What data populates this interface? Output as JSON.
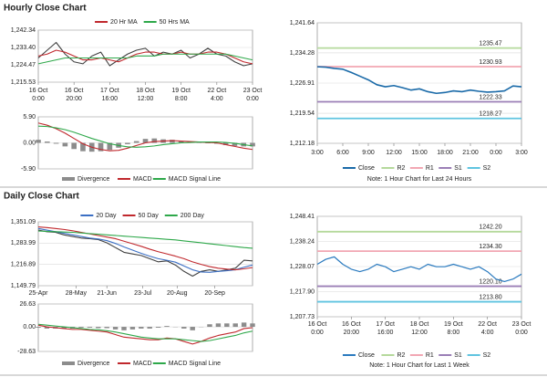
{
  "headers": [
    "Hourly Close Chart",
    "Daily Close Chart"
  ],
  "chart_data": [
    {
      "type": "line",
      "legend": "top",
      "grid": true,
      "xlim": [
        0,
        120
      ],
      "xticks": [
        {
          "value": 0,
          "label": [
            "16 Oct",
            "0:00"
          ]
        },
        {
          "value": 20,
          "label": [
            "16 Oct",
            "20:00"
          ]
        },
        {
          "value": 40,
          "label": [
            "17 Oct",
            "16:00"
          ]
        },
        {
          "value": 60,
          "label": [
            "18 Oct",
            "12:00"
          ]
        },
        {
          "value": 80,
          "label": [
            "19 Oct",
            "8:00"
          ]
        },
        {
          "value": 100,
          "label": [
            "22 Oct",
            "4:00"
          ]
        },
        {
          "value": 120,
          "label": [
            "23 Oct",
            "0:00"
          ]
        }
      ],
      "ylim": [
        1215.53,
        1242.34
      ],
      "yticks": [
        {
          "value": 1215.53,
          "label": "1,215.53"
        },
        {
          "value": 1224.47,
          "label": "1,224.47"
        },
        {
          "value": 1233.4,
          "label": "1,233.40"
        },
        {
          "value": 1242.34,
          "label": "1,242.34"
        }
      ],
      "x": [
        0,
        5,
        10,
        15,
        20,
        25,
        30,
        35,
        40,
        45,
        50,
        55,
        60,
        65,
        70,
        75,
        80,
        85,
        90,
        95,
        100,
        105,
        110,
        115,
        120
      ],
      "series": [
        {
          "color": "#404040",
          "values": [
            1228,
            1232,
            1236,
            1230,
            1226,
            1225,
            1229,
            1231,
            1224,
            1227,
            1230,
            1232,
            1233,
            1229,
            1231,
            1230,
            1232,
            1228,
            1230,
            1233,
            1230,
            1229,
            1226,
            1224,
            1225
          ]
        },
        {
          "name": "20 Hr MA",
          "color": "#c0282d",
          "values": [
            1229,
            1230,
            1232,
            1231,
            1229,
            1227,
            1227,
            1228,
            1227,
            1226,
            1228,
            1230,
            1231,
            1231,
            1230,
            1230,
            1231,
            1230,
            1230,
            1231,
            1231,
            1230,
            1228,
            1226,
            1225
          ]
        },
        {
          "name": "50 Hrs MA",
          "color": "#2ea84a",
          "values": [
            1225,
            1226,
            1227,
            1228,
            1228,
            1228,
            1228,
            1228,
            1228,
            1228,
            1228,
            1229,
            1229,
            1229,
            1230,
            1230,
            1230,
            1230,
            1230,
            1230,
            1230,
            1230,
            1229,
            1228,
            1227
          ]
        }
      ]
    },
    {
      "type": "macd",
      "legend": "bottom",
      "grid": true,
      "xlim": [
        0,
        120
      ],
      "ylim": [
        -5.9,
        5.9
      ],
      "yticks": [
        {
          "value": -5.9,
          "label": "-5.90"
        },
        {
          "value": 0,
          "label": "0.00"
        },
        {
          "value": 5.9,
          "label": "5.90"
        }
      ],
      "x": [
        0,
        5,
        10,
        15,
        20,
        25,
        30,
        35,
        40,
        45,
        50,
        55,
        60,
        65,
        70,
        75,
        80,
        85,
        90,
        95,
        100,
        105,
        110,
        115,
        120
      ],
      "series": [
        {
          "name": "Divergence",
          "kind": "bar",
          "color": "#8c8c8c",
          "values": [
            0.7,
            0.3,
            -0.2,
            -0.8,
            -1.4,
            -1.9,
            -2.0,
            -1.9,
            -1.6,
            -1.1,
            -0.3,
            0.4,
            0.9,
            1.0,
            0.8,
            0.7,
            0.4,
            0.2,
            0.0,
            -0.1,
            -0.2,
            -0.5,
            -0.7,
            -0.8,
            -0.8
          ]
        },
        {
          "name": "MACD",
          "color": "#c0282d",
          "values": [
            4.5,
            4.0,
            3.2,
            2.2,
            1.0,
            -0.2,
            -1.0,
            -1.5,
            -1.8,
            -1.7,
            -1.2,
            -0.6,
            0.0,
            0.3,
            0.4,
            0.5,
            0.4,
            0.3,
            0.2,
            0.1,
            0.0,
            -0.4,
            -0.8,
            -1.2,
            -1.5
          ]
        },
        {
          "name": "MACD Signal Line",
          "color": "#2ea84a",
          "values": [
            3.8,
            3.7,
            3.4,
            3.0,
            2.4,
            1.7,
            1.0,
            0.4,
            -0.2,
            -0.6,
            -0.9,
            -1.0,
            -0.9,
            -0.7,
            -0.4,
            -0.2,
            0.0,
            0.1,
            0.2,
            0.2,
            0.2,
            0.1,
            -0.1,
            -0.4,
            -0.7
          ]
        }
      ]
    },
    {
      "type": "line",
      "legend": "bottom",
      "grid": true,
      "note": "Note: 1 Hour Chart for Last 24 Hours",
      "xlim": [
        0,
        24
      ],
      "xticks": [
        {
          "value": 0,
          "label": [
            "3:00"
          ]
        },
        {
          "value": 3,
          "label": [
            "6:00"
          ]
        },
        {
          "value": 6,
          "label": [
            "9:00"
          ]
        },
        {
          "value": 9,
          "label": [
            "12:00"
          ]
        },
        {
          "value": 12,
          "label": [
            "15:00"
          ]
        },
        {
          "value": 15,
          "label": [
            "18:00"
          ]
        },
        {
          "value": 18,
          "label": [
            "21:00"
          ]
        },
        {
          "value": 21,
          "label": [
            "0:00"
          ]
        },
        {
          "value": 24,
          "label": [
            "3:00"
          ]
        }
      ],
      "ylim": [
        1212.18,
        1241.64
      ],
      "yticks": [
        {
          "value": 1212.18,
          "label": "1,212.18"
        },
        {
          "value": 1219.54,
          "label": "1,219.54"
        },
        {
          "value": 1226.91,
          "label": "1,226.91"
        },
        {
          "value": 1234.28,
          "label": "1,234.28"
        },
        {
          "value": 1241.64,
          "label": "1,241.64"
        }
      ],
      "x": [
        0,
        1,
        2,
        3,
        4,
        5,
        6,
        7,
        8,
        9,
        10,
        11,
        12,
        13,
        14,
        15,
        16,
        17,
        18,
        19,
        20,
        21,
        22,
        23,
        24
      ],
      "series": [
        {
          "name": "Close",
          "color": "#1a6aa8",
          "width": 1.6,
          "values": [
            1230.9,
            1230.8,
            1230.5,
            1230.3,
            1229.5,
            1228.6,
            1227.7,
            1226.5,
            1226.0,
            1226.3,
            1225.8,
            1225.2,
            1225.5,
            1224.8,
            1224.4,
            1224.6,
            1225.0,
            1224.8,
            1225.2,
            1224.9,
            1224.7,
            1224.8,
            1225.0,
            1226.2,
            1226.0
          ]
        }
      ],
      "levels": [
        {
          "name": "R2",
          "color": "#b5d99c",
          "value": 1235.47
        },
        {
          "name": "R1",
          "color": "#f2a7b3",
          "value": 1230.93
        },
        {
          "name": "S1",
          "color": "#9b7fb6",
          "value": 1222.33
        },
        {
          "name": "S2",
          "color": "#5fc4e0",
          "value": 1218.27
        }
      ]
    },
    {
      "type": "line",
      "legend": "top",
      "grid": true,
      "xlim": [
        0,
        125
      ],
      "xticks": [
        {
          "value": 0,
          "label": [
            "25-Apr"
          ]
        },
        {
          "value": 22,
          "label": [
            "28-May"
          ]
        },
        {
          "value": 40,
          "label": [
            "21-Jun"
          ]
        },
        {
          "value": 61,
          "label": [
            "23-Jul"
          ]
        },
        {
          "value": 81,
          "label": [
            "20-Aug"
          ]
        },
        {
          "value": 103,
          "label": [
            "20-Sep"
          ]
        }
      ],
      "ylim": [
        1149.79,
        1351.09
      ],
      "yticks": [
        {
          "value": 1149.79,
          "label": "1,149.79"
        },
        {
          "value": 1216.89,
          "label": "1,216.89"
        },
        {
          "value": 1283.99,
          "label": "1,283.99"
        },
        {
          "value": 1351.09,
          "label": "1,351.09"
        }
      ],
      "x": [
        0,
        5,
        10,
        15,
        20,
        25,
        30,
        35,
        40,
        45,
        50,
        55,
        60,
        65,
        70,
        75,
        80,
        85,
        90,
        95,
        100,
        105,
        110,
        115,
        120,
        125
      ],
      "series": [
        {
          "color": "#404040",
          "values": [
            1325,
            1320,
            1318,
            1310,
            1305,
            1300,
            1298,
            1295,
            1285,
            1270,
            1255,
            1250,
            1245,
            1235,
            1225,
            1228,
            1215,
            1195,
            1180,
            1195,
            1200,
            1195,
            1200,
            1205,
            1230,
            1228
          ]
        },
        {
          "name": "20 Day",
          "color": "#3b6fc4",
          "values": [
            1330,
            1325,
            1320,
            1315,
            1310,
            1305,
            1300,
            1297,
            1292,
            1283,
            1272,
            1262,
            1252,
            1243,
            1235,
            1230,
            1224,
            1212,
            1200,
            1193,
            1192,
            1195,
            1197,
            1200,
            1208,
            1215
          ]
        },
        {
          "name": "50 Day",
          "color": "#c0282d",
          "values": [
            1335,
            1333,
            1330,
            1327,
            1323,
            1318,
            1313,
            1308,
            1303,
            1298,
            1290,
            1282,
            1274,
            1265,
            1257,
            1250,
            1243,
            1235,
            1225,
            1217,
            1210,
            1205,
            1202,
            1200,
            1203,
            1207
          ]
        },
        {
          "name": "200 Day",
          "color": "#2ea84a",
          "values": [
            1322,
            1321,
            1320,
            1319,
            1318,
            1316,
            1314,
            1312,
            1310,
            1308,
            1306,
            1304,
            1302,
            1300,
            1298,
            1296,
            1294,
            1291,
            1288,
            1285,
            1282,
            1279,
            1276,
            1273,
            1270,
            1268
          ]
        }
      ]
    },
    {
      "type": "macd",
      "legend": "bottom",
      "grid": true,
      "xlim": [
        0,
        125
      ],
      "ylim": [
        -28.63,
        26.63
      ],
      "yticks": [
        {
          "value": -28.63,
          "label": "-28.63"
        },
        {
          "value": 0,
          "label": "0.00"
        },
        {
          "value": 26.63,
          "label": "26.63"
        }
      ],
      "x": [
        0,
        5,
        10,
        15,
        20,
        25,
        30,
        35,
        40,
        45,
        50,
        55,
        60,
        65,
        70,
        75,
        80,
        85,
        90,
        95,
        100,
        105,
        110,
        115,
        120,
        125
      ],
      "series": [
        {
          "name": "Divergence",
          "kind": "bar",
          "color": "#8c8c8c",
          "values": [
            -1,
            -2,
            -2,
            -2,
            -2,
            -1,
            -1,
            -1.5,
            -1.5,
            -3,
            -4,
            -3,
            -2,
            -2,
            -1,
            1,
            0,
            -2,
            -4,
            0,
            3,
            4,
            4,
            4,
            5,
            4
          ]
        },
        {
          "name": "MACD",
          "color": "#c0282d",
          "values": [
            2,
            0,
            -1,
            -2,
            -3,
            -3,
            -4,
            -5,
            -6,
            -9,
            -12,
            -13,
            -14,
            -15,
            -15,
            -13,
            -14,
            -17,
            -20,
            -17,
            -13,
            -10,
            -8,
            -6,
            -2,
            -1
          ]
        },
        {
          "name": "MACD Signal Line",
          "color": "#2ea84a",
          "values": [
            3,
            2,
            1,
            0,
            -1,
            -2,
            -3,
            -3.5,
            -4.5,
            -6,
            -8,
            -10,
            -12,
            -13,
            -14,
            -14,
            -14,
            -15,
            -16,
            -17,
            -16,
            -14,
            -12,
            -10,
            -7,
            -5
          ]
        }
      ]
    },
    {
      "type": "line",
      "legend": "bottom",
      "grid": true,
      "note": "Note: 1 Hour Chart for Last 1 Week",
      "xlim": [
        0,
        120
      ],
      "xticks": [
        {
          "value": 0,
          "label": [
            "16 Oct",
            "0:00"
          ]
        },
        {
          "value": 20,
          "label": [
            "16 Oct",
            "20:00"
          ]
        },
        {
          "value": 40,
          "label": [
            "17 Oct",
            "16:00"
          ]
        },
        {
          "value": 60,
          "label": [
            "18 Oct",
            "12:00"
          ]
        },
        {
          "value": 80,
          "label": [
            "19 Oct",
            "8:00"
          ]
        },
        {
          "value": 100,
          "label": [
            "22 Oct",
            "4:00"
          ]
        },
        {
          "value": 120,
          "label": [
            "23 Oct",
            "0:00"
          ]
        }
      ],
      "ylim": [
        1207.73,
        1248.41
      ],
      "yticks": [
        {
          "value": 1207.73,
          "label": "1,207.73"
        },
        {
          "value": 1217.9,
          "label": "1,217.90"
        },
        {
          "value": 1228.07,
          "label": "1,228.07"
        },
        {
          "value": 1238.24,
          "label": "1,238.24"
        },
        {
          "value": 1248.41,
          "label": "1,248.41"
        }
      ],
      "x": [
        0,
        5,
        10,
        15,
        20,
        25,
        30,
        35,
        40,
        45,
        50,
        55,
        60,
        65,
        70,
        75,
        80,
        85,
        90,
        95,
        100,
        105,
        110,
        115,
        120
      ],
      "series": [
        {
          "name": "Close",
          "color": "#2a7abf",
          "width": 1.2,
          "values": [
            1229,
            1231,
            1232,
            1229,
            1227,
            1226,
            1227,
            1229,
            1228,
            1226,
            1227,
            1228,
            1227,
            1229,
            1228,
            1228,
            1229,
            1228,
            1227,
            1228,
            1226,
            1223,
            1222,
            1223,
            1225
          ]
        }
      ],
      "levels": [
        {
          "name": "R2",
          "color": "#b5d99c",
          "value": 1242.2,
          "label": "1242.20"
        },
        {
          "name": "R1",
          "color": "#f2a7b3",
          "value": 1234.3,
          "label": "1234.30"
        },
        {
          "name": "S1",
          "color": "#9b7fb6",
          "value": 1220.1,
          "label": "1220.10"
        },
        {
          "name": "S2",
          "color": "#5fc4e0",
          "value": 1213.8,
          "label": "1213.80"
        }
      ]
    }
  ]
}
